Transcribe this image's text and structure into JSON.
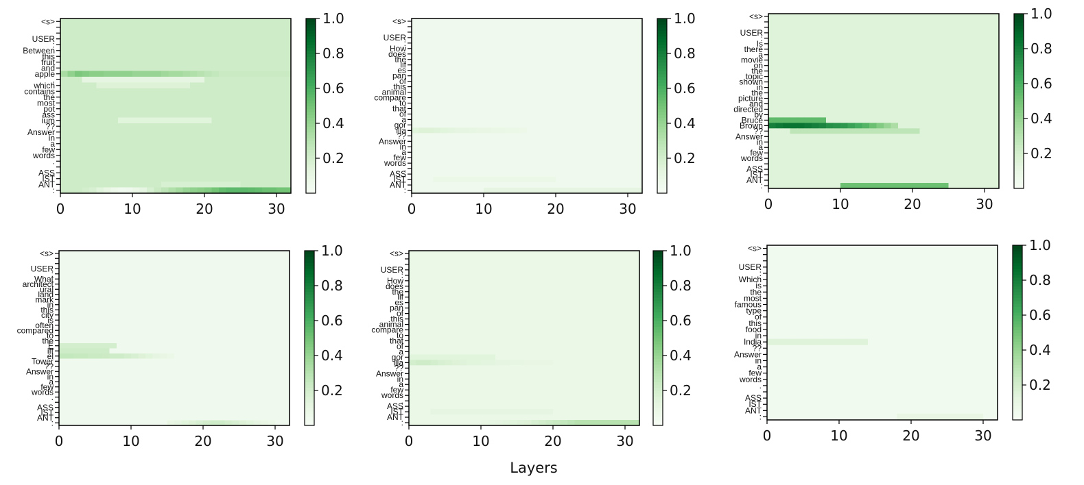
{
  "chart_data": [
    {
      "type": "heatmap",
      "colormap": "Greens",
      "xlim": [
        0,
        32
      ],
      "xticks": [
        "0",
        "10",
        "20",
        "30"
      ],
      "clim": [
        0,
        1
      ],
      "colorbar_ticks": [
        "0.2",
        "0.4",
        "0.6",
        "0.8",
        "1.0"
      ],
      "y_tokens": [
        "<s>",
        "",
        "",
        "USER",
        ":",
        "Between",
        "this",
        "fruit",
        "and",
        "apple",
        ",",
        "which",
        "contains",
        "the",
        "most",
        "pot",
        "ass",
        "ium",
        "??",
        "Answer",
        "in",
        "a",
        "few",
        "words",
        ".",
        "",
        "ASS",
        "IST",
        "ANT",
        ":"
      ],
      "base_value": 0.22,
      "highlights": [
        {
          "row": 9,
          "from": 0,
          "to": 32,
          "values": [
            0.35,
            0.42,
            0.48,
            0.46,
            0.44,
            0.44,
            0.42,
            0.42,
            0.42,
            0.42,
            0.4,
            0.4,
            0.4,
            0.4,
            0.38,
            0.36,
            0.36,
            0.34,
            0.32,
            0.3,
            0.28,
            0.26,
            0.24,
            0.24,
            0.24,
            0.24,
            0.24,
            0.24,
            0.24,
            0.24,
            0.24,
            0.24
          ]
        },
        {
          "row": 10,
          "from": 3,
          "to": 20,
          "value": 0.12
        },
        {
          "row": 11,
          "from": 5,
          "to": 18,
          "value": 0.16
        },
        {
          "row": 17,
          "from": 8,
          "to": 21,
          "value": 0.14
        },
        {
          "row": 28,
          "from": 14,
          "to": 25,
          "value": 0.18
        },
        {
          "row": 29,
          "from": 0,
          "to": 32,
          "values": [
            0.22,
            0.22,
            0.22,
            0.2,
            0.18,
            0.14,
            0.1,
            0.06,
            0.04,
            0.05,
            0.08,
            0.12,
            0.18,
            0.24,
            0.28,
            0.32,
            0.36,
            0.4,
            0.42,
            0.44,
            0.46,
            0.5,
            0.54,
            0.56,
            0.56,
            0.56,
            0.55,
            0.54,
            0.52,
            0.52,
            0.5,
            0.5
          ]
        }
      ]
    },
    {
      "type": "heatmap",
      "colormap": "Greens",
      "xlim": [
        0,
        32
      ],
      "xticks": [
        "0",
        "10",
        "20",
        "30"
      ],
      "clim": [
        0,
        1
      ],
      "colorbar_ticks": [
        "0.2",
        "0.4",
        "0.6",
        "0.8",
        "1.0"
      ],
      "y_tokens": [
        "<s>",
        "",
        "",
        "USER",
        ":",
        "How",
        "does",
        "the",
        "lif",
        "es",
        "pan",
        "of",
        "this",
        "animal",
        "compare",
        "to",
        "that",
        "of",
        "a",
        "gor",
        "illa",
        "??",
        "Answer",
        "in",
        "a",
        "few",
        "words",
        ".",
        "ASS",
        "IST",
        "ANT",
        ":"
      ],
      "base_value": 0.05,
      "highlights": [
        {
          "row": 20,
          "from": 0,
          "to": 16,
          "values": [
            0.14,
            0.16,
            0.16,
            0.15,
            0.14,
            0.13,
            0.12,
            0.12,
            0.11,
            0.1,
            0.1,
            0.09,
            0.09,
            0.08,
            0.08,
            0.07
          ]
        },
        {
          "row": 29,
          "from": 3,
          "to": 20,
          "value": 0.08
        },
        {
          "row": 31,
          "from": 10,
          "to": 32,
          "value": 0.12
        }
      ]
    },
    {
      "type": "heatmap",
      "colormap": "Greens",
      "xlim": [
        0,
        32
      ],
      "xticks": [
        "0",
        "10",
        "20",
        "30"
      ],
      "clim": [
        0,
        1
      ],
      "colorbar_ticks": [
        "0.2",
        "0.4",
        "0.6",
        "0.8",
        "1.0"
      ],
      "y_tokens": [
        "<s>",
        "",
        "",
        "USER",
        ":",
        "Is",
        "there",
        "a",
        "movie",
        "on",
        "the",
        "topic",
        "shown",
        "in",
        "the",
        "picture",
        "and",
        "directed",
        "by",
        "Bruce",
        "Brown",
        "??",
        "Answer",
        "in",
        "a",
        "few",
        "words",
        ".",
        "ASS",
        "IST",
        "ANT",
        ":"
      ],
      "base_value": 0.15,
      "highlights": [
        {
          "row": 19,
          "from": 0,
          "to": 8,
          "value": 0.55
        },
        {
          "row": 20,
          "from": 0,
          "to": 18,
          "values": [
            0.8,
            0.82,
            0.84,
            0.84,
            0.84,
            0.82,
            0.8,
            0.78,
            0.74,
            0.72,
            0.7,
            0.66,
            0.62,
            0.58,
            0.52,
            0.46,
            0.4,
            0.34
          ]
        },
        {
          "row": 21,
          "from": 3,
          "to": 21,
          "value": 0.28
        },
        {
          "row": 31,
          "from": 10,
          "to": 25,
          "value": 0.52
        }
      ]
    },
    {
      "type": "heatmap",
      "colormap": "Greens",
      "xlim": [
        0,
        32
      ],
      "xticks": [
        "0",
        "10",
        "20",
        "30"
      ],
      "clim": [
        0,
        1
      ],
      "colorbar_ticks": [
        "0.2",
        "0.4",
        "0.6",
        "0.8",
        "1.0"
      ],
      "y_tokens": [
        "<s>",
        "",
        "",
        "USER",
        ":",
        "What",
        "architect",
        "ural",
        "land",
        "mark",
        "in",
        "this",
        "city",
        "is",
        "often",
        "compared",
        "to",
        "the",
        "E",
        "iff",
        "el",
        "Tower",
        "??",
        "Answer",
        "in",
        "a",
        "few",
        "words",
        ".",
        "",
        "ASS",
        "IST",
        "ANT",
        ":"
      ],
      "base_value": 0.05,
      "highlights": [
        {
          "row": 18,
          "from": 0,
          "to": 8,
          "value": 0.2
        },
        {
          "row": 19,
          "from": 0,
          "to": 7,
          "value": 0.22
        },
        {
          "row": 20,
          "from": 0,
          "to": 16,
          "values": [
            0.26,
            0.26,
            0.25,
            0.25,
            0.24,
            0.24,
            0.23,
            0.22,
            0.22,
            0.2,
            0.18,
            0.16,
            0.14,
            0.12,
            0.1,
            0.08
          ]
        },
        {
          "row": 33,
          "from": 15,
          "to": 30,
          "values": [
            0.1,
            0.12,
            0.14,
            0.16,
            0.18,
            0.2,
            0.22,
            0.22,
            0.2,
            0.18,
            0.16,
            0.14,
            0.12,
            0.1,
            0.08
          ]
        }
      ]
    },
    {
      "type": "heatmap",
      "colormap": "Greens",
      "xlim": [
        0,
        32
      ],
      "xticks": [
        "0",
        "10",
        "20",
        "30"
      ],
      "clim": [
        0,
        1
      ],
      "colorbar_ticks": [
        "0.2",
        "0.4",
        "0.6",
        "0.8",
        "1.0"
      ],
      "y_tokens": [
        "<s>",
        "",
        "",
        "USER",
        ":",
        "How",
        "does",
        "the",
        "lif",
        "es",
        "pan",
        "of",
        "this",
        "animal",
        "compare",
        "to",
        "that",
        "of",
        "a",
        "gor",
        "illa",
        "??",
        "Answer",
        "in",
        "a",
        "few",
        "words",
        ".",
        "ASS",
        "IST",
        "ANT",
        ":"
      ],
      "base_value": 0.08,
      "highlights": [
        {
          "row": 19,
          "from": 0,
          "to": 12,
          "value": 0.14
        },
        {
          "row": 20,
          "from": 0,
          "to": 20,
          "values": [
            0.2,
            0.22,
            0.22,
            0.2,
            0.18,
            0.17,
            0.16,
            0.15,
            0.14,
            0.14,
            0.13,
            0.13,
            0.12,
            0.12,
            0.11,
            0.11,
            0.1,
            0.1,
            0.1,
            0.1
          ]
        },
        {
          "row": 29,
          "from": 3,
          "to": 20,
          "value": 0.12
        },
        {
          "row": 31,
          "from": 10,
          "to": 32,
          "values": [
            0.1,
            0.11,
            0.12,
            0.13,
            0.14,
            0.15,
            0.16,
            0.18,
            0.2,
            0.22,
            0.24,
            0.26,
            0.28,
            0.3,
            0.3,
            0.3,
            0.3,
            0.3,
            0.3,
            0.3,
            0.3,
            0.3
          ]
        }
      ]
    },
    {
      "type": "heatmap",
      "colormap": "Greens",
      "xlim": [
        0,
        32
      ],
      "xticks": [
        "0",
        "10",
        "20",
        "30"
      ],
      "clim": [
        0,
        1
      ],
      "colorbar_ticks": [
        "0.2",
        "0.4",
        "0.6",
        "0.8",
        "1.0"
      ],
      "y_tokens": [
        "<s>",
        "",
        "",
        "USER",
        ":",
        "Which",
        "is",
        "the",
        "most",
        "famous",
        "type",
        "of",
        "this",
        "food",
        "in",
        "India",
        "??",
        "Answer",
        "in",
        "a",
        "few",
        "words",
        ".",
        "",
        "ASS",
        "IST",
        "ANT",
        ":"
      ],
      "base_value": 0.04,
      "highlights": [
        {
          "row": 15,
          "from": 0,
          "to": 14,
          "value": 0.15
        },
        {
          "row": 27,
          "from": 18,
          "to": 30,
          "value": 0.1
        }
      ]
    }
  ],
  "shared_xlabel": "Layers"
}
